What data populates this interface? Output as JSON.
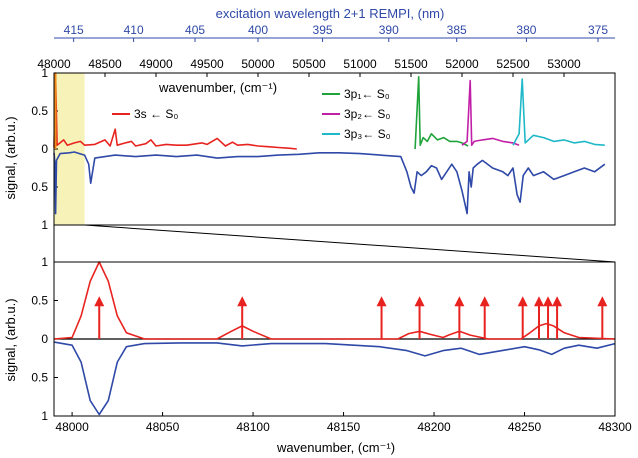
{
  "chart_data": [
    {
      "type": "line",
      "panel": "top",
      "top_axis": {
        "label": "excitation wavelength 2+1 REMPI, (nm)",
        "ticks": [
          415,
          410,
          405,
          400,
          395,
          390,
          385,
          380,
          375
        ],
        "tick_labels": [
          "415",
          "410",
          "405",
          "400",
          "395",
          "390",
          "385",
          "380",
          "375"
        ]
      },
      "x_axis": {
        "label": "wavenumber, (cm⁻¹)",
        "range": [
          48000,
          53500
        ],
        "ticks": [
          48000,
          48500,
          49000,
          49500,
          50000,
          50500,
          51000,
          51500,
          52000,
          52500,
          53000
        ],
        "tick_labels": [
          "48000",
          "48500",
          "49000",
          "49500",
          "50000",
          "50500",
          "51000",
          "51500",
          "52000",
          "52500",
          "53000"
        ]
      },
      "y_axis": {
        "label": "signal, (arb.u.)",
        "range": [
          -1,
          1
        ],
        "ticks": [
          1,
          0.5,
          0,
          -0.5,
          -1
        ],
        "tick_labels": [
          "1",
          "0.5",
          "0",
          "0.5",
          "1"
        ]
      },
      "highlight_region": [
        48000,
        48300
      ],
      "legend": [
        {
          "name": "3s ← S₀",
          "color": "#e8231f"
        },
        {
          "name": "3p₁← S₀",
          "color": "#1fa33a"
        },
        {
          "name": "3p₂← S₀",
          "color": "#c21fa8"
        },
        {
          "name": "3p₃← S₀",
          "color": "#1fb8c8"
        }
      ],
      "series": [
        {
          "name": "3s ← S₀",
          "color": "#e8231f",
          "x": [
            48000,
            48015,
            48030,
            48095,
            48130,
            48200,
            48260,
            48300,
            48400,
            48500,
            48550,
            48600,
            48620,
            48700,
            48760,
            48800,
            48900,
            48950,
            49000,
            49100,
            49200,
            49300,
            49450,
            49500,
            49600,
            49680,
            49750,
            49800,
            49900,
            50000,
            50100,
            50200,
            50300,
            50380
          ],
          "y": [
            0.02,
            1.0,
            0.05,
            0.12,
            0.05,
            0.08,
            0.1,
            0.05,
            0.06,
            0.12,
            0.04,
            0.26,
            0.05,
            0.08,
            0.1,
            0.04,
            0.07,
            0.12,
            0.04,
            0.06,
            0.05,
            0.05,
            0.08,
            0.06,
            0.14,
            0.04,
            0.09,
            0.05,
            0.06,
            0.04,
            0.03,
            0.02,
            0.01,
            0.0
          ]
        },
        {
          "name": "3p₁← S₀",
          "color": "#1fa33a",
          "x": [
            51540,
            51575,
            51590,
            51620,
            51660,
            51700,
            51760,
            51820,
            51880,
            51950,
            52000,
            52060
          ],
          "y": [
            0.0,
            0.95,
            0.05,
            0.15,
            0.1,
            0.2,
            0.12,
            0.15,
            0.1,
            0.1,
            0.08,
            0.04
          ]
        },
        {
          "name": "3p₂← S₀",
          "color": "#c21fa8",
          "x": [
            52000,
            52050,
            52080,
            52095,
            52120,
            52200,
            52300,
            52400,
            52500,
            52560
          ],
          "y": [
            0.05,
            0.1,
            0.9,
            0.05,
            0.1,
            0.12,
            0.14,
            0.1,
            0.08,
            0.05
          ]
        },
        {
          "name": "3p₃← S₀",
          "color": "#1fb8c8",
          "x": [
            52500,
            52560,
            52590,
            52620,
            52700,
            52800,
            52900,
            53000,
            53100,
            53200,
            53300,
            53400
          ],
          "y": [
            0.05,
            0.2,
            0.92,
            0.08,
            0.18,
            0.15,
            0.1,
            0.12,
            0.08,
            0.1,
            0.06,
            0.05
          ]
        },
        {
          "name": "",
          "color": "#2f49a8",
          "x": [
            48000,
            48010,
            48016,
            48025,
            48060,
            48150,
            48200,
            48250,
            48300,
            48340,
            48360,
            48400,
            48500,
            48600,
            48800,
            49000,
            49200,
            49400,
            49600,
            49800,
            50000,
            50200,
            50400,
            50600,
            50800,
            51000,
            51200,
            51400,
            51460,
            51500,
            51530,
            51560,
            51600,
            51650,
            51700,
            51750,
            51800,
            51850,
            51900,
            51950,
            52000,
            52050,
            52070,
            52090,
            52110,
            52150,
            52200,
            52300,
            52400,
            52450,
            52500,
            52540,
            52570,
            52600,
            52650,
            52700,
            52800,
            52900,
            53000,
            53100,
            53200,
            53300,
            53400
          ],
          "y": [
            -0.05,
            -0.2,
            -0.85,
            -0.15,
            -0.06,
            -0.05,
            -0.04,
            -0.06,
            -0.08,
            -0.2,
            -0.45,
            -0.12,
            -0.1,
            -0.08,
            -0.1,
            -0.08,
            -0.1,
            -0.08,
            -0.12,
            -0.1,
            -0.1,
            -0.08,
            -0.07,
            -0.05,
            -0.05,
            -0.06,
            -0.08,
            -0.1,
            -0.3,
            -0.5,
            -0.58,
            -0.3,
            -0.35,
            -0.3,
            -0.22,
            -0.25,
            -0.4,
            -0.3,
            -0.2,
            -0.3,
            -0.55,
            -0.85,
            -0.3,
            -0.5,
            -0.25,
            -0.2,
            -0.15,
            -0.25,
            -0.3,
            -0.35,
            -0.25,
            -0.6,
            -0.7,
            -0.35,
            -0.25,
            -0.35,
            -0.3,
            -0.4,
            -0.35,
            -0.3,
            -0.25,
            -0.3,
            -0.2
          ]
        }
      ]
    },
    {
      "type": "line",
      "panel": "bottom",
      "x_axis": {
        "label": "wavenumber, (cm⁻¹)",
        "range": [
          47990,
          48300
        ],
        "ticks": [
          48000,
          48050,
          48100,
          48150,
          48200,
          48250,
          48300
        ],
        "tick_labels": [
          "48000",
          "48050",
          "48100",
          "48150",
          "48200",
          "48250",
          "48300"
        ]
      },
      "y_axis": {
        "label": "signal, (arb.u.)",
        "range": [
          -1,
          1
        ],
        "ticks": [
          1,
          0.5,
          0,
          -0.5,
          -1
        ],
        "tick_labels": [
          "1",
          "0.5",
          "0",
          "0.5",
          "1"
        ]
      },
      "series": [
        {
          "name": "",
          "color": "#e8231f",
          "x": [
            47990,
            48000,
            48005,
            48010,
            48015,
            48020,
            48025,
            48030,
            48040,
            48080,
            48088,
            48094,
            48100,
            48110,
            48180,
            48186,
            48192,
            48198,
            48205,
            48208,
            48214,
            48220,
            48230,
            48248,
            48253,
            48258,
            48262,
            48266,
            48272,
            48280,
            48300
          ],
          "y": [
            0,
            0.02,
            0.3,
            0.75,
            1.0,
            0.75,
            0.3,
            0.08,
            0,
            0,
            0.1,
            0.17,
            0.1,
            0,
            0,
            0.07,
            0.1,
            0.06,
            0.02,
            0.05,
            0.1,
            0.05,
            0,
            0,
            0.08,
            0.17,
            0.2,
            0.17,
            0.08,
            0.02,
            0
          ]
        },
        {
          "name": "",
          "color": "#2f49a8",
          "x": [
            47990,
            48000,
            48005,
            48010,
            48015,
            48020,
            48025,
            48030,
            48040,
            48060,
            48080,
            48094,
            48110,
            48140,
            48170,
            48185,
            48195,
            48205,
            48215,
            48225,
            48240,
            48250,
            48258,
            48265,
            48272,
            48280,
            48290,
            48300
          ],
          "y": [
            -0.04,
            -0.08,
            -0.3,
            -0.8,
            -0.98,
            -0.8,
            -0.3,
            -0.1,
            -0.06,
            -0.05,
            -0.05,
            -0.09,
            -0.06,
            -0.06,
            -0.1,
            -0.15,
            -0.22,
            -0.15,
            -0.12,
            -0.2,
            -0.14,
            -0.1,
            -0.14,
            -0.2,
            -0.12,
            -0.08,
            -0.12,
            -0.06
          ]
        }
      ],
      "arrows": {
        "color": "#e8231f",
        "x": [
          48015,
          48094,
          48171,
          48192,
          48214,
          48228,
          48249,
          48258,
          48263,
          48268,
          48293
        ],
        "height": [
          0.53,
          0.53,
          0.53,
          0.53,
          0.53,
          0.53,
          0.53,
          0.53,
          0.53,
          0.53,
          0.53
        ]
      }
    }
  ]
}
